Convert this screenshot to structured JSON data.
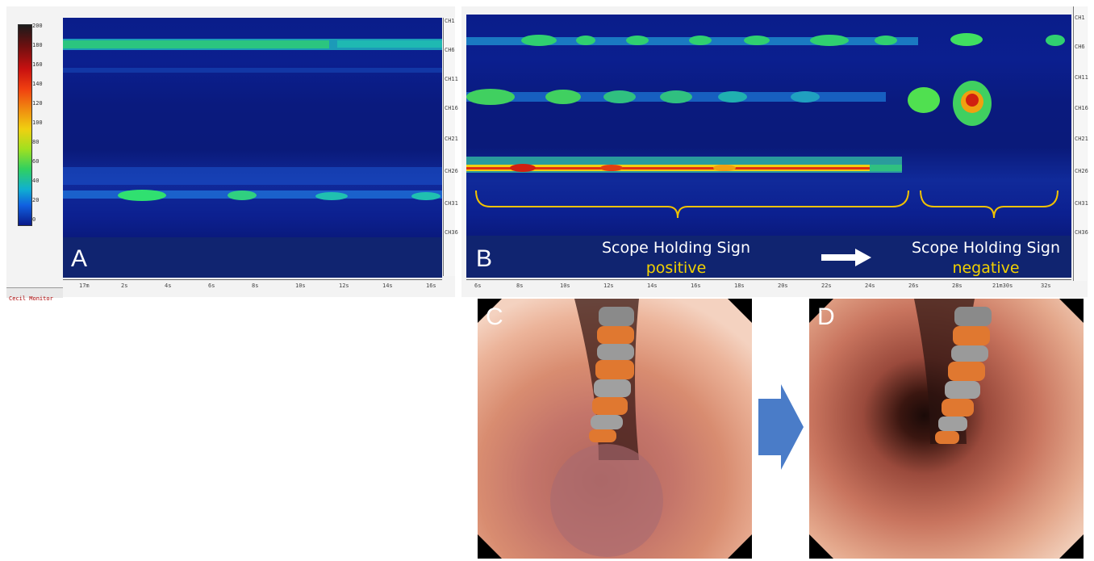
{
  "panels": {
    "a": {
      "letter": "A"
    },
    "b": {
      "letter": "B",
      "left_caption": {
        "title": "Scope Holding Sign",
        "state": "positive"
      },
      "right_caption": {
        "title": "Scope Holding Sign",
        "state": "negative"
      }
    },
    "c": {
      "letter": "C"
    },
    "d": {
      "letter": "D"
    }
  },
  "color_scale": {
    "ticks": [
      "200",
      "180",
      "160",
      "140",
      "120",
      "100",
      "80",
      "60",
      "40",
      "20",
      "0"
    ],
    "colors": [
      "#1b1b1b",
      "#6a1010",
      "#c81010",
      "#f04010",
      "#f08a10",
      "#f0d010",
      "#a0e020",
      "#30d060",
      "#10b0d0",
      "#1060e0",
      "#0a1a8a"
    ]
  },
  "channel_labels": [
    "CH1",
    "CH6",
    "CH11",
    "CH16",
    "CH21",
    "CH26",
    "CH31",
    "CH36"
  ],
  "time_axis_a": [
    "17m",
    "2s",
    "4s",
    "6s",
    "8s",
    "10s",
    "12s",
    "14s",
    "16s"
  ],
  "time_axis_b": [
    "6s",
    "8s",
    "10s",
    "12s",
    "14s",
    "16s",
    "18s",
    "20s",
    "22s",
    "24s",
    "26s",
    "28s",
    "21m30s",
    "32s"
  ],
  "software_tab": "Cecil Monitor",
  "colors": {
    "caption_text": "#ffffff",
    "caption_state": "#f2d100",
    "bracket": "#f2c200",
    "arrow_between_photos": "#4a7cc8"
  }
}
